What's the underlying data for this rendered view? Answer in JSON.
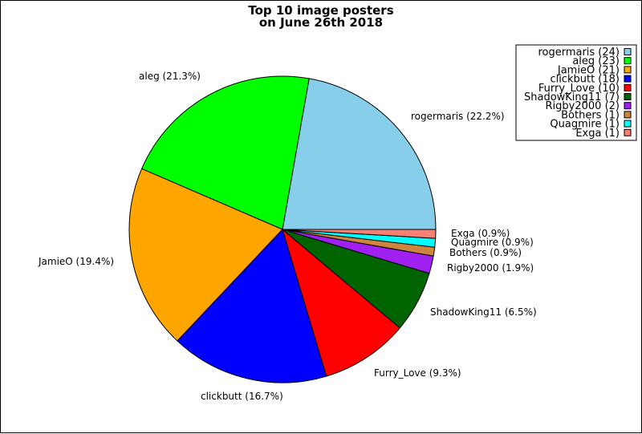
{
  "chart_data": {
    "type": "pie",
    "title": [
      "Top 10 image posters",
      "on June 26th 2018"
    ],
    "start_angle_deg": 0,
    "direction": "counterclockwise",
    "legend_position": "top-right",
    "slices": [
      {
        "name": "rogermaris",
        "value": 24,
        "percent_label": "rogermaris (22.2%)",
        "legend_label": "rogermaris (24)",
        "color": "#87ceeb"
      },
      {
        "name": "aleg",
        "value": 23,
        "percent_label": "aleg (21.3%)",
        "legend_label": "aleg (23)",
        "color": "#00ff00"
      },
      {
        "name": "JamieO",
        "value": 21,
        "percent_label": "JamieO (19.4%)",
        "legend_label": "JamieO (21)",
        "color": "#ffa500"
      },
      {
        "name": "clickbutt",
        "value": 18,
        "percent_label": "clickbutt (16.7%)",
        "legend_label": "clickbutt (18)",
        "color": "#0000ff"
      },
      {
        "name": "Furry_Love",
        "value": 10,
        "percent_label": "Furry_Love (9.3%)",
        "legend_label": "Furry_Love (10)",
        "color": "#ff0000"
      },
      {
        "name": "ShadowKing11",
        "value": 7,
        "percent_label": "ShadowKing11 (6.5%)",
        "legend_label": "ShadowKing11 (7)",
        "color": "#006400"
      },
      {
        "name": "Rigby2000",
        "value": 2,
        "percent_label": "Rigby2000 (1.9%)",
        "legend_label": "Rigby2000 (2)",
        "color": "#a020f0"
      },
      {
        "name": "Bothers",
        "value": 1,
        "percent_label": "Bothers (0.9%)",
        "legend_label": "Bothers (1)",
        "color": "#cd853f"
      },
      {
        "name": "Quagmire",
        "value": 1,
        "percent_label": "Quagmire (0.9%)",
        "legend_label": "Quagmire (1)",
        "color": "#00ffff"
      },
      {
        "name": "Exga",
        "value": 1,
        "percent_label": "Exga (0.9%)",
        "legend_label": "Exga (1)",
        "color": "#fa8072"
      }
    ]
  }
}
